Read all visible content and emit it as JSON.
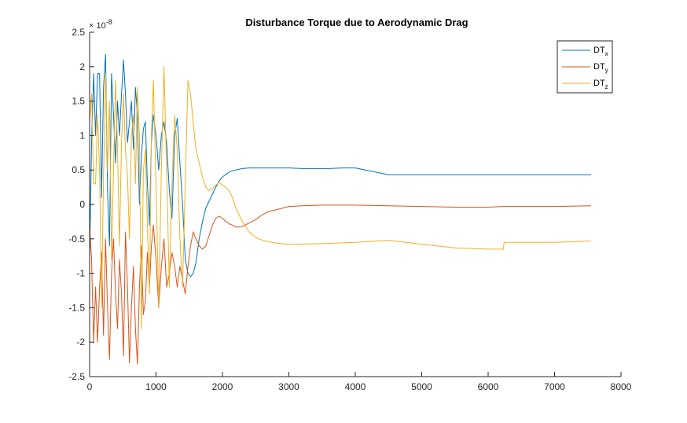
{
  "chart_data": {
    "type": "line",
    "title": "Disturbance Torque due to Aerodynamic Drag",
    "xlabel": "",
    "ylabel": "",
    "exponent": {
      "base": "× 10",
      "power": "-8"
    },
    "xlim": [
      0,
      8000
    ],
    "ylim": [
      -2.5,
      2.5
    ],
    "xticks": [
      0,
      1000,
      2000,
      3000,
      4000,
      5000,
      6000,
      7000,
      8000
    ],
    "xtick_labels": [
      "0",
      "1000",
      "2000",
      "3000",
      "4000",
      "5000",
      "6000",
      "7000",
      "8000"
    ],
    "yticks": [
      -2.5,
      -2,
      -1.5,
      -1,
      -0.5,
      0,
      0.5,
      1,
      1.5,
      2,
      2.5
    ],
    "ytick_labels": [
      "-2.5",
      "-2",
      "-1.5",
      "-1",
      "-0.5",
      "0",
      "0.5",
      "1",
      "1.5",
      "2",
      "2.5"
    ],
    "grid": false,
    "legend_position": "top-right",
    "series": [
      {
        "name": "DT",
        "subscript": "x",
        "color": "#0072BD",
        "x": [
          0,
          30,
          60,
          90,
          120,
          150,
          180,
          210,
          240,
          270,
          300,
          330,
          360,
          390,
          420,
          450,
          480,
          510,
          540,
          570,
          600,
          630,
          660,
          690,
          720,
          750,
          780,
          810,
          840,
          870,
          900,
          930,
          960,
          1000,
          1040,
          1080,
          1120,
          1160,
          1200,
          1240,
          1280,
          1320,
          1360,
          1400,
          1440,
          1480,
          1520,
          1560,
          1600,
          1650,
          1700,
          1750,
          1800,
          1850,
          1900,
          1950,
          2000,
          2100,
          2200,
          2300,
          2400,
          2500,
          2600,
          2700,
          2800,
          2900,
          3000,
          3200,
          3400,
          3600,
          3800,
          4000,
          4500,
          5000,
          5500,
          6000,
          6230,
          6240,
          6500,
          7000,
          7550
        ],
        "y": [
          -0.8,
          0.9,
          1.9,
          1.0,
          1.9,
          1.9,
          0.1,
          1.7,
          2.18,
          0.2,
          -0.6,
          1.9,
          1.3,
          0.6,
          1.5,
          1.0,
          1.6,
          2.1,
          1.6,
          0.9,
          1.2,
          1.5,
          0.8,
          1.7,
          1.3,
          0.0,
          0.7,
          1.1,
          1.2,
          0.3,
          -0.3,
          0.9,
          1.3,
          1.0,
          0.5,
          1.0,
          1.2,
          0.9,
          0.2,
          -0.2,
          1.0,
          1.25,
          0.6,
          0.0,
          -0.8,
          -1.0,
          -1.05,
          -1.0,
          -0.85,
          -0.5,
          -0.25,
          -0.05,
          0.05,
          0.15,
          0.25,
          0.34,
          0.4,
          0.47,
          0.5,
          0.52,
          0.53,
          0.53,
          0.53,
          0.53,
          0.53,
          0.53,
          0.53,
          0.52,
          0.52,
          0.52,
          0.53,
          0.53,
          0.43,
          0.43,
          0.43,
          0.43,
          0.43,
          0.43,
          0.43,
          0.43,
          0.43
        ]
      },
      {
        "name": "DT",
        "subscript": "y",
        "color": "#D95319",
        "x": [
          0,
          30,
          60,
          90,
          120,
          150,
          180,
          210,
          240,
          270,
          300,
          330,
          360,
          390,
          420,
          450,
          480,
          510,
          540,
          570,
          600,
          630,
          660,
          690,
          720,
          750,
          780,
          810,
          840,
          870,
          900,
          930,
          960,
          1000,
          1040,
          1080,
          1120,
          1160,
          1200,
          1240,
          1280,
          1320,
          1360,
          1400,
          1440,
          1480,
          1520,
          1560,
          1600,
          1650,
          1700,
          1750,
          1800,
          1850,
          1900,
          1950,
          2000,
          2050,
          2100,
          2150,
          2200,
          2300,
          2400,
          2500,
          2600,
          2700,
          2800,
          3000,
          3200,
          3500,
          4000,
          4500,
          5000,
          5500,
          6000,
          6230,
          6500,
          7000,
          7550
        ],
        "y": [
          -0.3,
          -0.8,
          -2.0,
          -1.2,
          -2.0,
          -1.2,
          -0.7,
          -1.9,
          -0.5,
          -1.5,
          -2.25,
          -1.0,
          -0.5,
          -1.3,
          -1.8,
          -0.8,
          -1.3,
          -2.2,
          -0.4,
          -1.2,
          -2.3,
          -1.5,
          -0.9,
          -1.8,
          -2.32,
          -1.2,
          -0.6,
          -1.6,
          -1.4,
          -0.7,
          -1.2,
          -0.6,
          -0.3,
          -0.8,
          -1.5,
          -0.9,
          -0.5,
          -1.2,
          -1.0,
          -0.7,
          -0.9,
          -1.2,
          -0.9,
          -1.1,
          -1.3,
          -0.9,
          -0.6,
          -0.4,
          -0.5,
          -0.6,
          -0.65,
          -0.6,
          -0.45,
          -0.3,
          -0.2,
          -0.17,
          -0.2,
          -0.25,
          -0.28,
          -0.3,
          -0.33,
          -0.32,
          -0.27,
          -0.22,
          -0.15,
          -0.1,
          -0.08,
          -0.03,
          -0.02,
          -0.01,
          -0.01,
          -0.02,
          -0.03,
          -0.04,
          -0.04,
          -0.03,
          -0.03,
          -0.03,
          -0.02
        ]
      },
      {
        "name": "DT",
        "subscript": "z",
        "color": "#EDB120",
        "x": [
          0,
          30,
          60,
          90,
          120,
          150,
          180,
          210,
          240,
          270,
          300,
          330,
          360,
          390,
          420,
          450,
          480,
          510,
          540,
          570,
          600,
          630,
          660,
          690,
          720,
          750,
          780,
          810,
          840,
          870,
          900,
          930,
          960,
          1000,
          1040,
          1080,
          1120,
          1160,
          1200,
          1240,
          1280,
          1320,
          1360,
          1400,
          1440,
          1480,
          1520,
          1560,
          1600,
          1650,
          1700,
          1750,
          1800,
          1850,
          1900,
          1950,
          2000,
          2050,
          2100,
          2150,
          2200,
          2300,
          2400,
          2500,
          2600,
          2800,
          3000,
          3500,
          4000,
          4500,
          5000,
          5500,
          6000,
          6230,
          6240,
          6500,
          7000,
          7550
        ],
        "y": [
          1.2,
          1.6,
          0.3,
          0.3,
          1.3,
          0.5,
          -1.5,
          0.4,
          1.9,
          0.5,
          1.5,
          -0.8,
          0.5,
          1.8,
          0.8,
          -0.6,
          0.9,
          1.6,
          0.8,
          0.4,
          -0.5,
          1.0,
          1.3,
          0.3,
          1.7,
          1.0,
          -1.8,
          0.5,
          0.8,
          -0.3,
          -1.3,
          1.0,
          1.8,
          0.3,
          -1.5,
          0.5,
          2.0,
          0.5,
          -1.2,
          0.3,
          1.3,
          0.8,
          -0.5,
          -1.2,
          0.3,
          1.8,
          1.6,
          1.2,
          0.8,
          0.6,
          0.4,
          0.25,
          0.2,
          0.23,
          0.28,
          0.32,
          0.28,
          0.25,
          0.2,
          0.1,
          -0.05,
          -0.25,
          -0.4,
          -0.48,
          -0.52,
          -0.56,
          -0.58,
          -0.57,
          -0.55,
          -0.52,
          -0.58,
          -0.63,
          -0.65,
          -0.65,
          -0.55,
          -0.55,
          -0.55,
          -0.53
        ]
      }
    ]
  }
}
